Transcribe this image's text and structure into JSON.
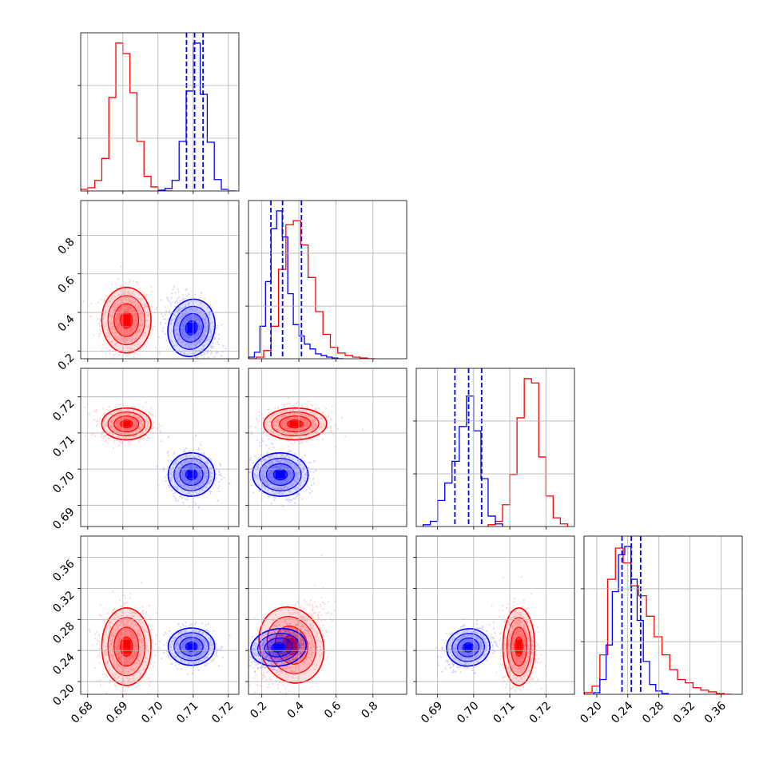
{
  "figure": {
    "type": "corner_plot",
    "parameters": 4,
    "colors": {
      "red_sample": "#ff0000",
      "blue_sample": "#0000ff"
    }
  },
  "chart_data": [
    {
      "type": "histogram",
      "panel": "p0_marginal",
      "xlim": [
        0.678,
        0.723
      ],
      "red": {
        "edges": [
          0.678,
          0.68,
          0.682,
          0.684,
          0.686,
          0.688,
          0.69,
          0.692,
          0.694,
          0.696,
          0.698,
          0.7,
          0.702,
          0.704
        ],
        "counts": [
          2,
          4,
          13,
          40,
          115,
          182,
          169,
          121,
          61,
          18,
          5,
          1,
          0
        ]
      },
      "blue": {
        "edges": [
          0.7,
          0.702,
          0.704,
          0.706,
          0.708,
          0.71,
          0.712,
          0.714,
          0.716,
          0.718,
          0.72,
          0.722
        ],
        "counts": [
          1,
          3,
          13,
          61,
          123,
          182,
          119,
          60,
          14,
          2,
          0
        ]
      },
      "quantiles_blue": [
        0.7081,
        0.7104,
        0.7128
      ],
      "yticks": [
        0.3333,
        0.6667
      ]
    },
    {
      "type": "histogram",
      "panel": "p1_marginal",
      "xlim": [
        0.128,
        0.982
      ],
      "red": {
        "edges": [
          0.13,
          0.17,
          0.21,
          0.25,
          0.29,
          0.33,
          0.37,
          0.41,
          0.45,
          0.49,
          0.53,
          0.57,
          0.61,
          0.65,
          0.69,
          0.73,
          0.77,
          0.81
        ],
        "counts": [
          0,
          2,
          10,
          40,
          110,
          165,
          170,
          140,
          100,
          58,
          30,
          14,
          7,
          4,
          2,
          1,
          0
        ]
      },
      "blue": {
        "edges": [
          0.13,
          0.16,
          0.19,
          0.22,
          0.25,
          0.28,
          0.31,
          0.34,
          0.37,
          0.4,
          0.43,
          0.46,
          0.49,
          0.52,
          0.55,
          0.58,
          0.61,
          0.64
        ],
        "counts": [
          2,
          8,
          40,
          95,
          160,
          182,
          150,
          80,
          42,
          28,
          18,
          12,
          6,
          4,
          2,
          1,
          0
        ]
      },
      "quantiles_blue": [
        0.249,
        0.312,
        0.414
      ],
      "yticks": [
        0.333,
        0.667
      ]
    },
    {
      "type": "histogram",
      "panel": "p2_marginal",
      "xlim": [
        0.6841,
        0.7279
      ],
      "red": {
        "edges": [
          0.704,
          0.706,
          0.708,
          0.71,
          0.712,
          0.714,
          0.716,
          0.718,
          0.72,
          0.722,
          0.724,
          0.726
        ],
        "counts": [
          2,
          6,
          25,
          60,
          125,
          170,
          165,
          80,
          35,
          10,
          3
        ]
      },
      "blue": {
        "edges": [
          0.686,
          0.688,
          0.69,
          0.692,
          0.694,
          0.696,
          0.698,
          0.7,
          0.702,
          0.704,
          0.706,
          0.708
        ],
        "counts": [
          2,
          6,
          30,
          50,
          75,
          115,
          150,
          110,
          55,
          12,
          3
        ]
      },
      "quantiles_blue": [
        0.6948,
        0.6986,
        0.7022
      ],
      "yticks": [
        0.333,
        0.667
      ]
    },
    {
      "type": "histogram",
      "panel": "p3_marginal",
      "xlim": [
        0.1836,
        0.3874
      ],
      "red": {
        "edges": [
          0.184,
          0.194,
          0.204,
          0.214,
          0.224,
          0.234,
          0.244,
          0.254,
          0.264,
          0.274,
          0.284,
          0.294,
          0.304,
          0.314,
          0.324,
          0.334,
          0.344,
          0.354,
          0.364,
          0.374
        ],
        "counts": [
          2,
          10,
          48,
          140,
          178,
          160,
          132,
          120,
          95,
          70,
          48,
          30,
          18,
          14,
          8,
          5,
          3,
          1,
          0
        ]
      },
      "blue": {
        "edges": [
          0.196,
          0.204,
          0.212,
          0.22,
          0.228,
          0.236,
          0.244,
          0.252,
          0.26,
          0.268,
          0.276,
          0.284,
          0.292
        ],
        "counts": [
          2,
          18,
          60,
          125,
          170,
          180,
          140,
          90,
          40,
          12,
          4,
          1
        ]
      },
      "quantiles_blue": [
        0.2325,
        0.2445,
        0.2565
      ],
      "yticks": [
        0.333,
        0.667
      ]
    },
    {
      "type": "scatter",
      "panel": "p1_vs_p0",
      "xlim": [
        0.678,
        0.723
      ],
      "ylim": [
        0.16,
        0.98
      ],
      "red": {
        "center": [
          0.691,
          0.36
        ],
        "spread": [
          0.0035,
          0.085
        ],
        "corr": 0.0
      },
      "blue": {
        "center": [
          0.7095,
          0.32
        ],
        "spread": [
          0.0033,
          0.075
        ],
        "corr": -0.35
      }
    },
    {
      "type": "scatter",
      "panel": "p2_vs_p0",
      "xlim": [
        0.678,
        0.723
      ],
      "ylim": [
        0.6841,
        0.7279
      ],
      "red": {
        "center": [
          0.691,
          0.7125
        ],
        "spread": [
          0.0035,
          0.0022
        ],
        "corr": 0.0
      },
      "blue": {
        "center": [
          0.7095,
          0.6985
        ],
        "spread": [
          0.0033,
          0.003
        ],
        "corr": 0.05
      }
    },
    {
      "type": "scatter",
      "panel": "p2_vs_p1",
      "xlim": [
        0.128,
        0.982
      ],
      "ylim": [
        0.6841,
        0.7279
      ],
      "red": {
        "center": [
          0.38,
          0.7125
        ],
        "spread": [
          0.085,
          0.0022
        ],
        "corr": 0.05
      },
      "blue": {
        "center": [
          0.3,
          0.6985
        ],
        "spread": [
          0.075,
          0.003
        ],
        "corr": -0.05
      }
    },
    {
      "type": "scatter",
      "panel": "p3_vs_p0",
      "xlim": [
        0.678,
        0.723
      ],
      "ylim": [
        0.1836,
        0.3874
      ],
      "red": {
        "center": [
          0.691,
          0.245
        ],
        "spread": [
          0.0035,
          0.025
        ],
        "corr": 0.0
      },
      "blue": {
        "center": [
          0.7095,
          0.245
        ],
        "spread": [
          0.0033,
          0.012
        ],
        "corr": 0.0
      }
    },
    {
      "type": "scatter",
      "panel": "p3_vs_p1",
      "xlim": [
        0.128,
        0.982
      ],
      "ylim": [
        0.1836,
        0.3874
      ],
      "red": {
        "center": [
          0.36,
          0.247
        ],
        "spread": [
          0.085,
          0.025
        ],
        "corr": 0.55
      },
      "blue": {
        "center": [
          0.29,
          0.244
        ],
        "spread": [
          0.075,
          0.012
        ],
        "corr": 0.35
      }
    },
    {
      "type": "scatter",
      "panel": "p3_vs_p2",
      "xlim": [
        0.6841,
        0.7279
      ],
      "ylim": [
        0.1836,
        0.3874
      ],
      "red": {
        "center": [
          0.7125,
          0.245
        ],
        "spread": [
          0.0022,
          0.025
        ],
        "corr": 0.0
      },
      "blue": {
        "center": [
          0.6985,
          0.244
        ],
        "spread": [
          0.003,
          0.012
        ],
        "corr": 0.3
      }
    }
  ],
  "tick_labels": {
    "p0": [
      "0.68",
      "0.69",
      "0.70",
      "0.71",
      "0.72"
    ],
    "p1": [
      "0.2",
      "0.4",
      "0.6",
      "0.8"
    ],
    "p2": [
      "0.69",
      "0.70",
      "0.71",
      "0.72"
    ],
    "p3": [
      "0.20",
      "0.24",
      "0.28",
      "0.32",
      "0.36"
    ]
  },
  "tick_values": {
    "p0": [
      0.68,
      0.69,
      0.7,
      0.71,
      0.72
    ],
    "p1": [
      0.2,
      0.4,
      0.6,
      0.8
    ],
    "p2": [
      0.69,
      0.7,
      0.71,
      0.72
    ],
    "p3": [
      0.2,
      0.24,
      0.28,
      0.32,
      0.36
    ]
  }
}
